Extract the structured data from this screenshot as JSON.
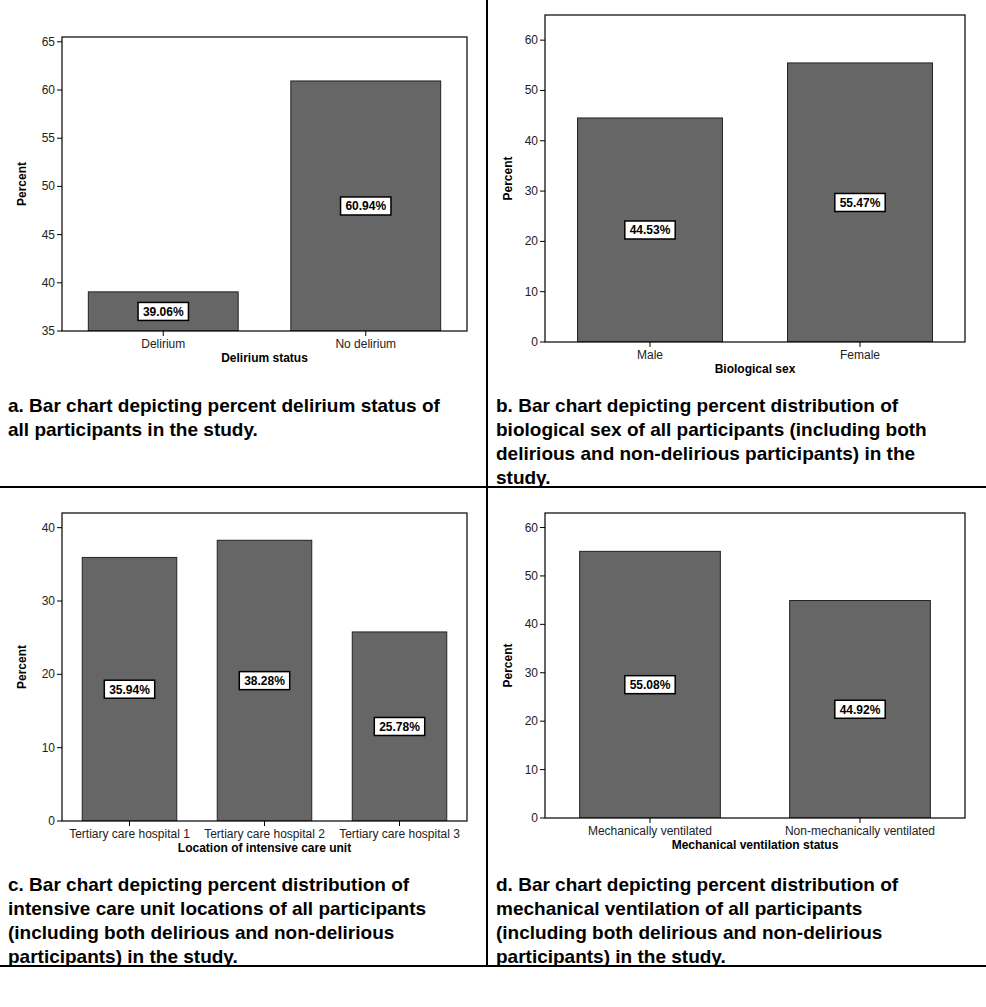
{
  "chart_data": [
    {
      "type": "bar",
      "categories": [
        "Delirium",
        "No delirium"
      ],
      "values": [
        39.06,
        60.94
      ],
      "value_labels": [
        "39.06%",
        "60.94%"
      ],
      "data_labels": true,
      "color": "#666666",
      "x_label": "Delirium status",
      "y_label": "Percent",
      "ylim": [
        35,
        65.5
      ],
      "yticks": [
        35,
        40,
        45,
        50,
        55,
        60,
        65
      ],
      "grid": false,
      "caption": [
        "a. Bar chart depicting percent delirium status of",
        "all participants in the study."
      ]
    },
    {
      "type": "bar",
      "categories": [
        "Male",
        "Female"
      ],
      "values": [
        44.53,
        55.47
      ],
      "value_labels": [
        "44.53%",
        "55.47%"
      ],
      "data_labels": true,
      "color": "#666666",
      "x_label": "Biological sex",
      "y_label": "Percent",
      "ylim": [
        0,
        65
      ],
      "yticks": [
        0,
        10,
        20,
        30,
        40,
        50,
        60
      ],
      "grid": false,
      "caption": [
        "b. Bar chart depicting percent distribution of",
        "biological sex of all participants (including both",
        "delirious and non-delirious participants) in the",
        "study."
      ]
    },
    {
      "type": "bar",
      "categories": [
        "Tertiary care hospital 1",
        "Tertiary care hospital 2",
        "Tertiary care hospital 3"
      ],
      "values": [
        35.94,
        38.28,
        25.78
      ],
      "value_labels": [
        "35.94%",
        "38.28%",
        "25.78%"
      ],
      "data_labels": true,
      "color": "#666666",
      "x_label": "Location of intensive care unit",
      "y_label": "Percent",
      "ylim": [
        0,
        42
      ],
      "yticks": [
        0,
        10,
        20,
        30,
        40
      ],
      "grid": false,
      "caption": [
        "c. Bar chart depicting percent distribution of",
        "intensive care unit locations of all participants",
        "(including both delirious and non-delirious",
        "participants) in the study."
      ]
    },
    {
      "type": "bar",
      "categories": [
        "Mechanically ventilated",
        "Non-mechanically ventilated"
      ],
      "values": [
        55.08,
        44.92
      ],
      "value_labels": [
        "55.08%",
        "44.92%"
      ],
      "data_labels": true,
      "color": "#666666",
      "x_label": "Mechanical ventilation status",
      "y_label": "Percent",
      "ylim": [
        0,
        63
      ],
      "yticks": [
        0,
        10,
        20,
        30,
        40,
        50,
        60
      ],
      "grid": false,
      "caption": [
        "d. Bar chart depicting percent distribution of",
        "mechanical ventilation of all participants",
        "(including both delirious and non-delirious",
        "participants) in the study."
      ]
    }
  ]
}
